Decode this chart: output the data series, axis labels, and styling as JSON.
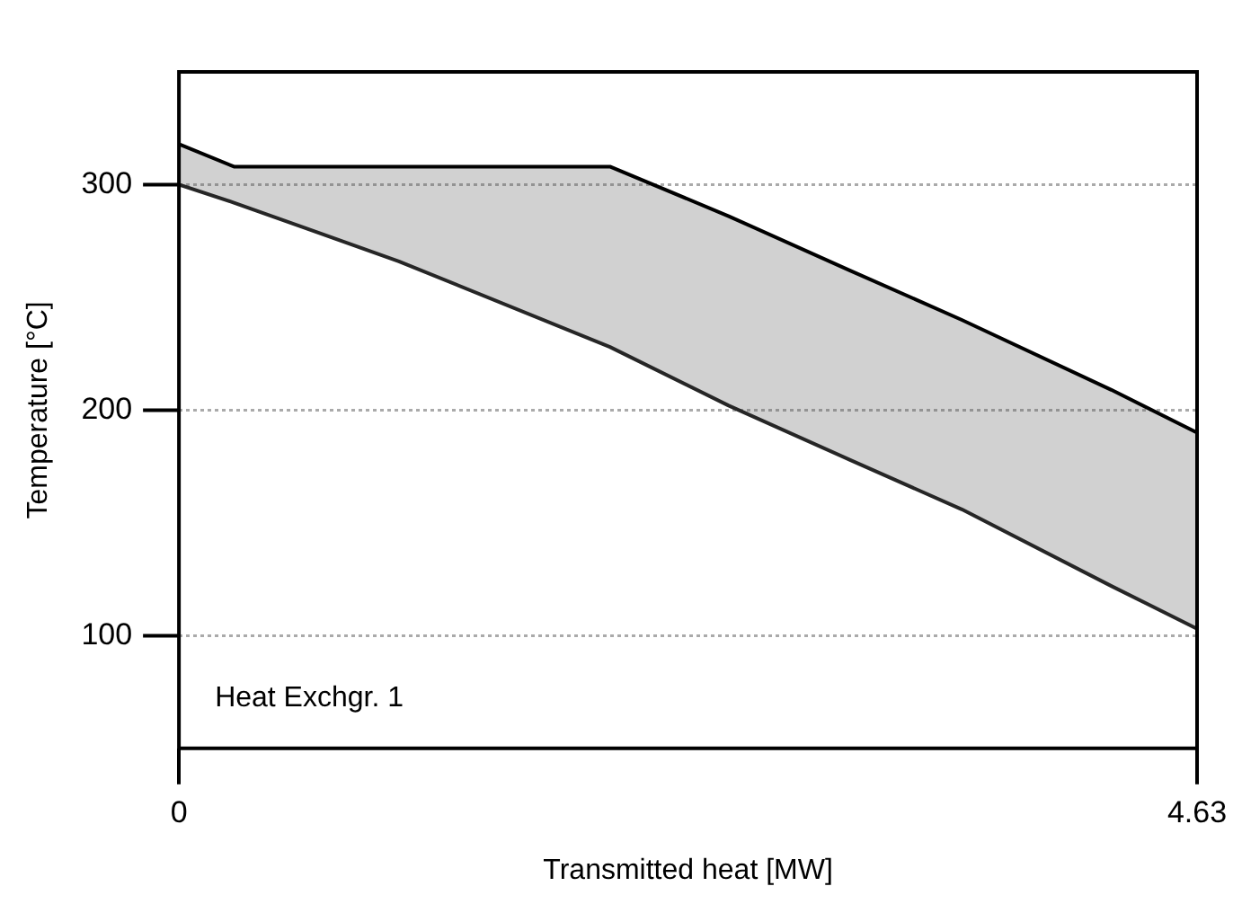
{
  "chart_data": {
    "type": "line",
    "xlabel": "Transmitted heat [MW]",
    "ylabel": "Temperature [°C]",
    "x": [
      0,
      0.25,
      1.0,
      1.96,
      2.5,
      3.05,
      3.56,
      4.24,
      4.63
    ],
    "series": [
      {
        "color": "#262626",
        "values": [
          300,
          292,
          266,
          228,
          202,
          178,
          156,
          122,
          103
        ]
      },
      {
        "type": "area",
        "color": "#000000",
        "values": [
          318,
          308,
          308,
          308,
          286,
          262,
          240,
          209,
          190
        ]
      }
    ],
    "xlim": [
      0,
      4.63
    ],
    "xticks": [
      0,
      4.63
    ],
    "ylim": [
      50,
      350
    ],
    "yticks": [
      100,
      200,
      300
    ],
    "grid": "y",
    "legend": false,
    "marker": "none",
    "line_style": "solid",
    "annotations": [
      "Heat Exchgr. 1"
    ]
  }
}
